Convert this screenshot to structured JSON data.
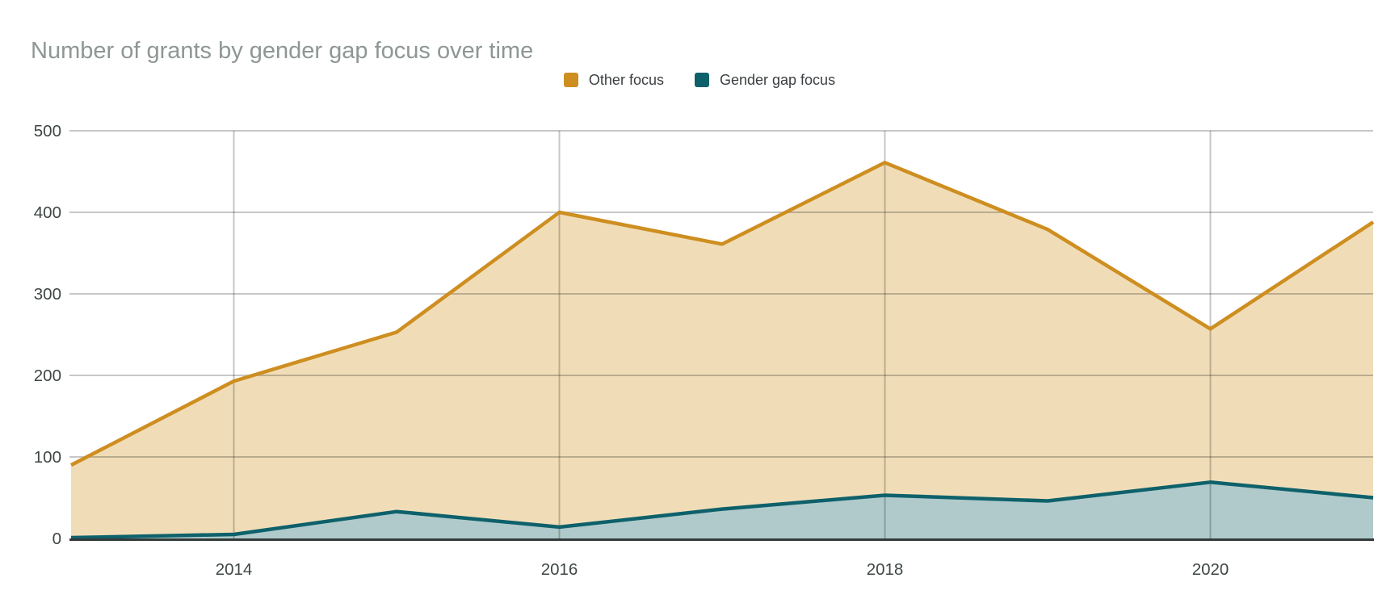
{
  "title": "Number of grants by gender gap focus over time",
  "legend": {
    "items": [
      {
        "label": "Other focus",
        "color": "#CE8E20"
      },
      {
        "label": "Gender gap focus",
        "color": "#0E616B"
      }
    ]
  },
  "chart_data": {
    "type": "area",
    "title": "Number of grants by gender gap focus over time",
    "x": [
      2013,
      2014,
      2015,
      2016,
      2017,
      2018,
      2019,
      2020,
      2021
    ],
    "series": [
      {
        "name": "Other focus",
        "color": "#CE8E20",
        "fill": "#F0DDB8",
        "values": [
          90,
          193,
          253,
          400,
          361,
          461,
          379,
          257,
          388
        ]
      },
      {
        "name": "Gender gap focus",
        "color": "#0E616B",
        "fill": "#B0CACB",
        "values": [
          1,
          5,
          33,
          14,
          36,
          53,
          46,
          69,
          50
        ]
      }
    ],
    "xlabel": "",
    "ylabel": "",
    "xlim": [
      2013,
      2021
    ],
    "ylim": [
      0,
      500
    ],
    "y_ticks": [
      0,
      100,
      200,
      300,
      400,
      500
    ],
    "x_tick_years": [
      2014,
      2016,
      2018,
      2020
    ],
    "x_tick_labels": [
      "2014",
      "2016",
      "2018",
      "2020"
    ],
    "grid": "on",
    "legend_position": "top",
    "area_style": "overlapping (not stacked), semi-transparent fills over gridlines"
  },
  "colors": {
    "background": "#ffffff",
    "gridline": "rgba(0,0,0,0.22)",
    "axis_line": "#333A3A",
    "title_text": "#8E9793",
    "tick_text": "#3F4743",
    "legend_text": "#3C4043"
  }
}
